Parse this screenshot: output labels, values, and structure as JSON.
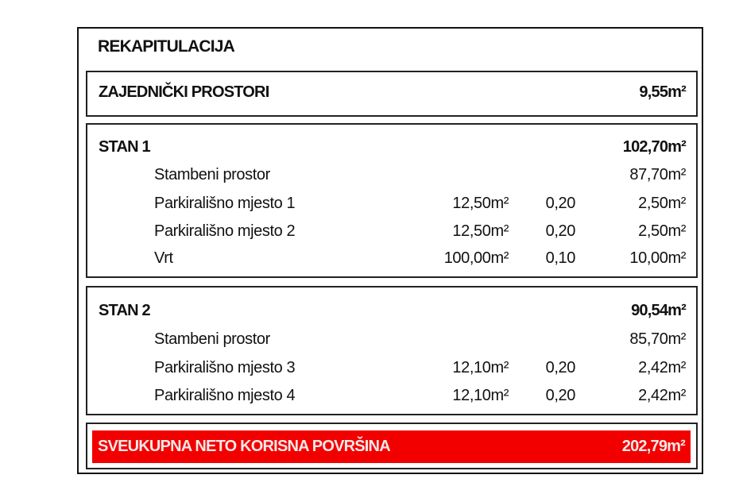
{
  "title": "REKAPITULACIJA",
  "common": {
    "label": "ZAJEDNIČKI PROSTORI",
    "value": "9,55m²"
  },
  "units": [
    {
      "label": "STAN 1",
      "total": "102,70m²",
      "items": [
        {
          "label": "Stambeni prostor",
          "area": "",
          "coef": "",
          "value": "87,70m²"
        },
        {
          "label": "Parkirališno mjesto 1",
          "area": "12,50m²",
          "coef": "0,20",
          "value": "2,50m²"
        },
        {
          "label": "Parkirališno mjesto 2",
          "area": "12,50m²",
          "coef": "0,20",
          "value": "2,50m²"
        },
        {
          "label": "Vrt",
          "area": "100,00m²",
          "coef": "0,10",
          "value": "10,00m²"
        }
      ]
    },
    {
      "label": "STAN 2",
      "total": "90,54m²",
      "items": [
        {
          "label": "Stambeni prostor",
          "area": "",
          "coef": "",
          "value": "85,70m²"
        },
        {
          "label": "Parkirališno mjesto 3",
          "area": "12,10m²",
          "coef": "0,20",
          "value": "2,42m²"
        },
        {
          "label": "Parkirališno mjesto 4",
          "area": "12,10m²",
          "coef": "0,20",
          "value": "2,42m²"
        }
      ]
    }
  ],
  "grand_total": {
    "label": "SVEUKUPNA NETO KORISNA POVRŠINA",
    "value": "202,79m²",
    "color": "#f20000"
  }
}
